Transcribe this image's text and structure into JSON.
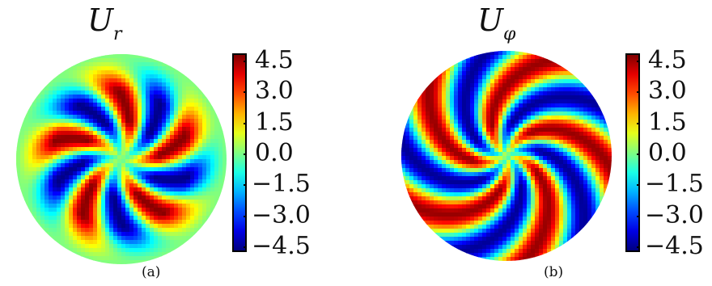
{
  "chart_data": [
    {
      "type": "heatmap",
      "subtype": "polar contour plot",
      "panel_label": "(a)",
      "title": "U_r",
      "title_main": "U",
      "title_sub": "r",
      "colormap": "jet",
      "colorbar": {
        "min": -4.5,
        "max": 4.5,
        "ticks": [
          "4.5",
          "3.0",
          "1.5",
          "0.0",
          "−1.5",
          "−3.0",
          "−4.5"
        ]
      },
      "pattern": {
        "arms": 5,
        "type": "alternating spiral lobes"
      }
    },
    {
      "type": "heatmap",
      "subtype": "polar contour plot",
      "panel_label": "(b)",
      "title": "U_φ",
      "title_main": "U",
      "title_sub": "φ",
      "colormap": "jet",
      "colorbar": {
        "min": -4.5,
        "max": 4.5,
        "ticks": [
          "4.5",
          "3.0",
          "1.5",
          "0.0",
          "−1.5",
          "−3.0",
          "−4.5"
        ]
      },
      "pattern": {
        "arms": 5,
        "type": "alternating spiral bands"
      }
    }
  ]
}
